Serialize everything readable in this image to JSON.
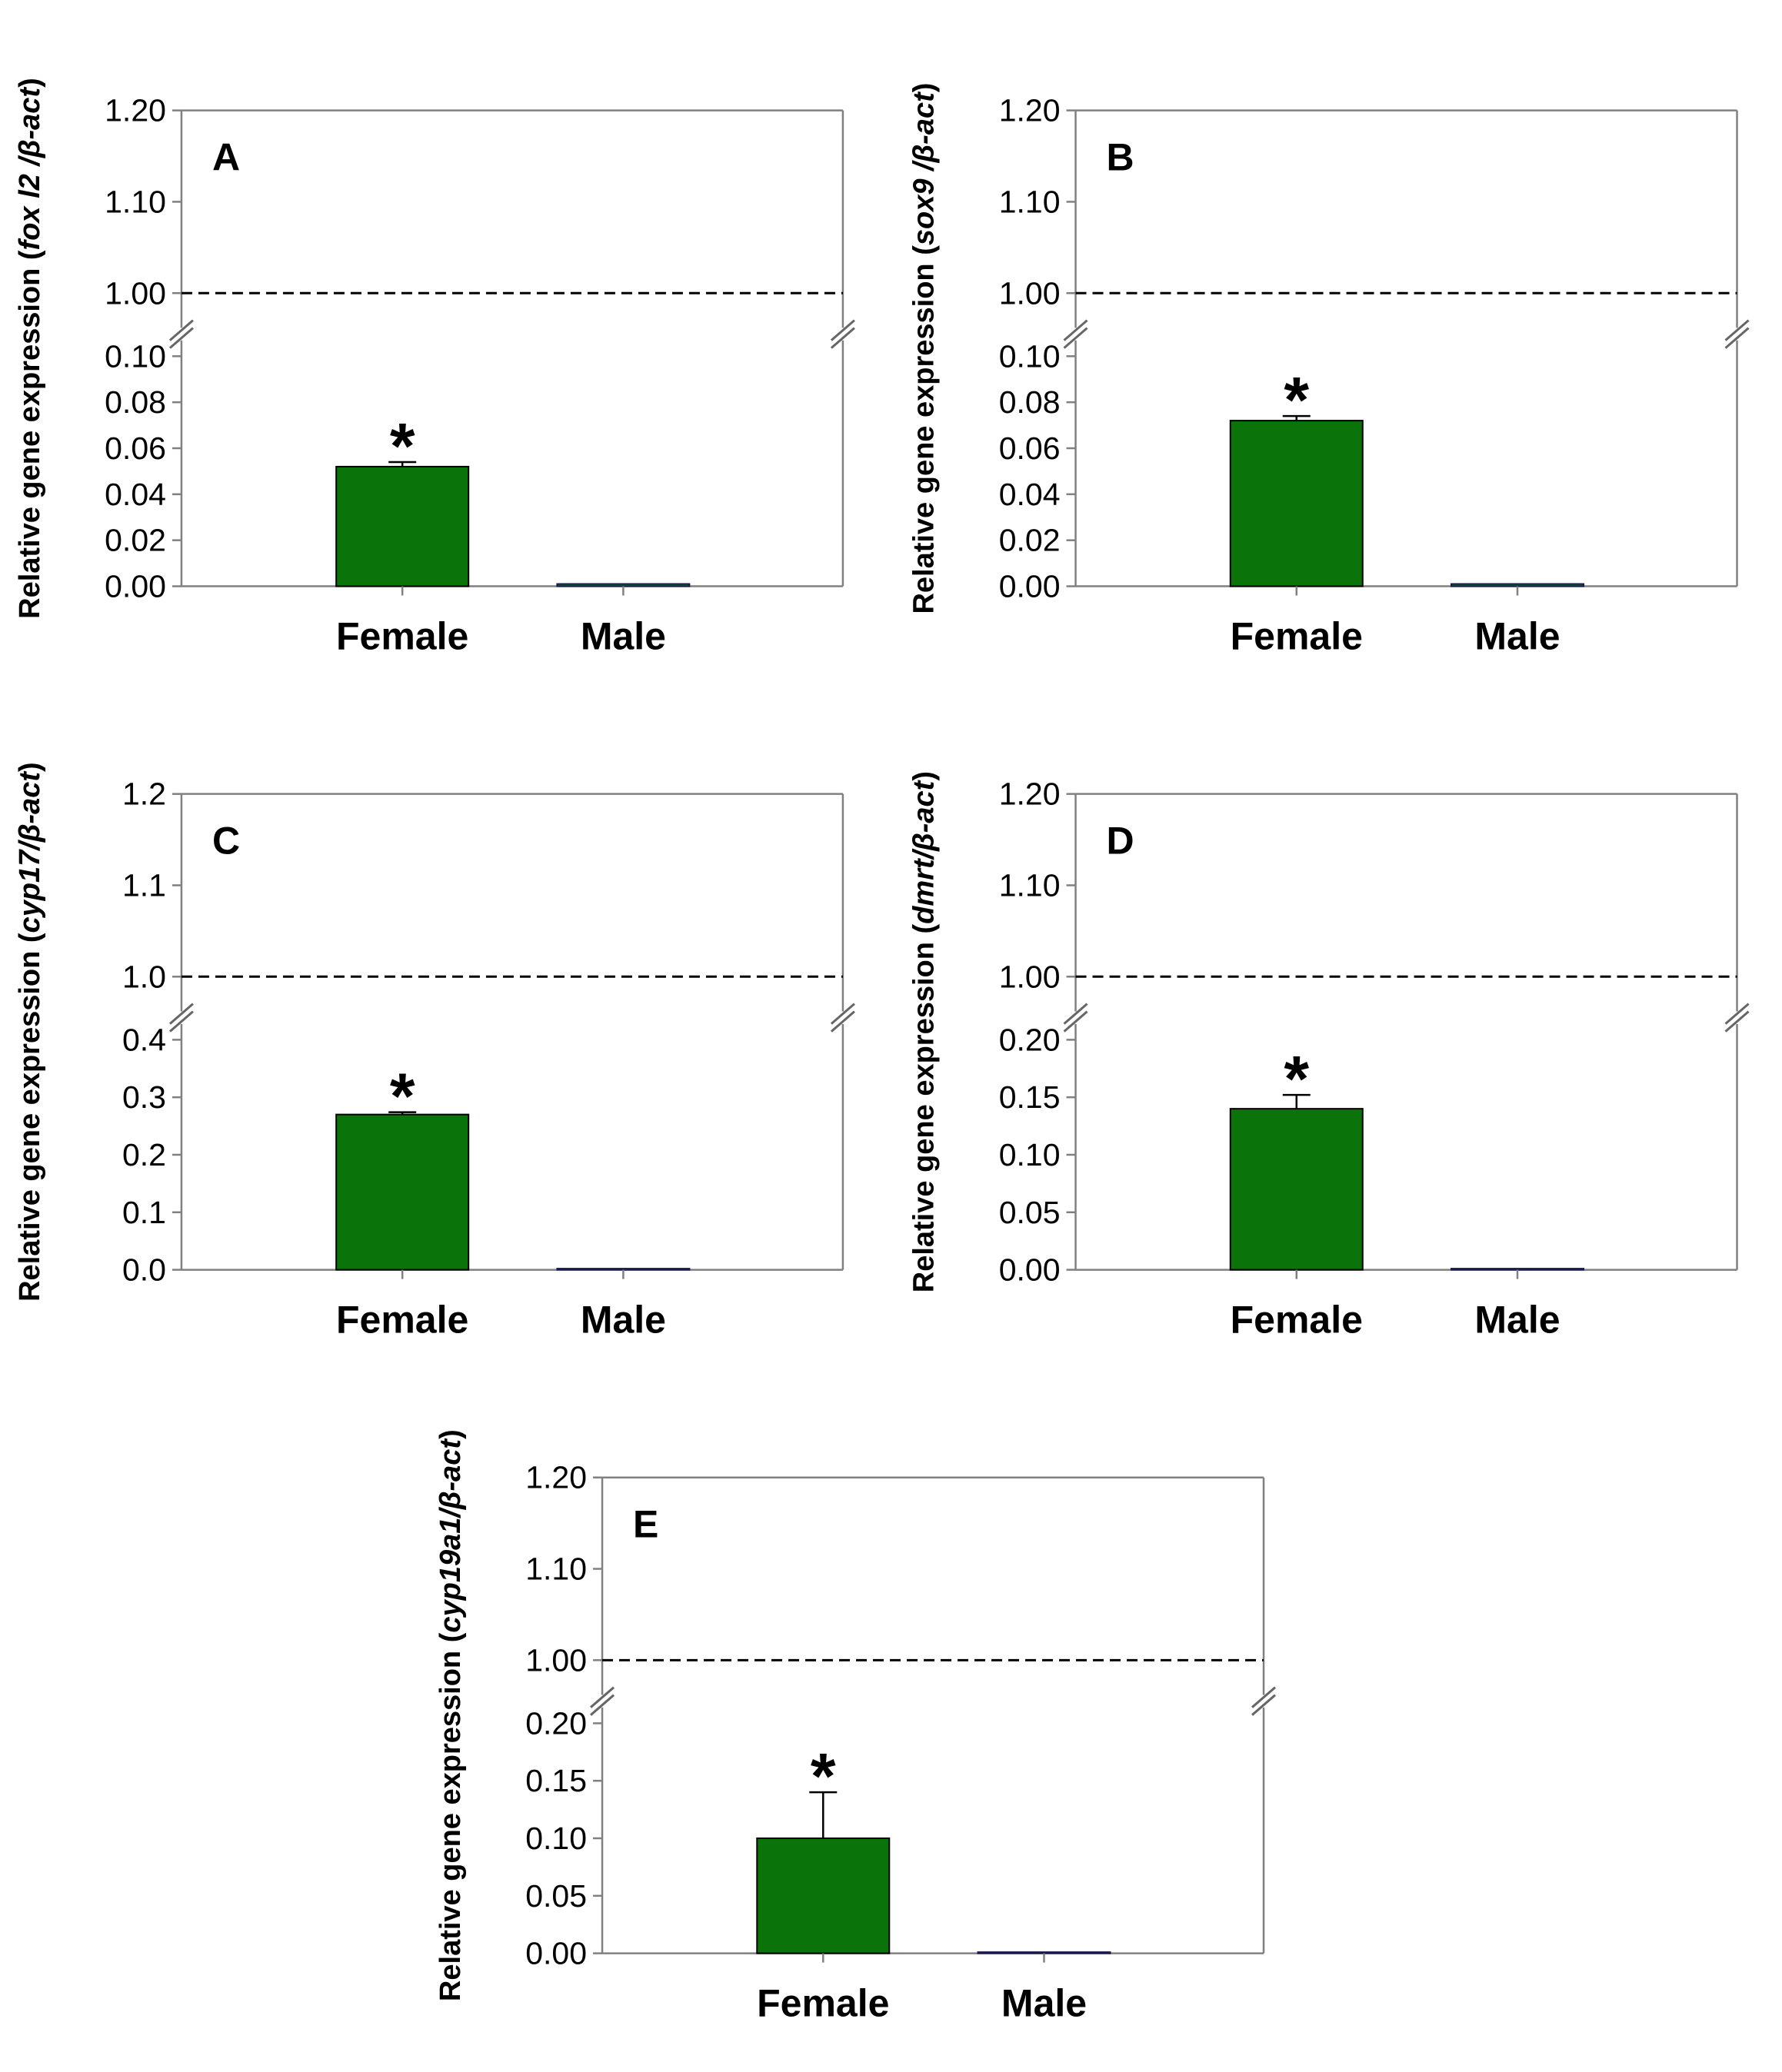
{
  "figure": {
    "bar_color": "#0a730a",
    "categories": [
      "Female",
      "Male"
    ]
  },
  "chart_data": [
    {
      "type": "bar",
      "panel": "A",
      "ylabel_prefix": "Relative gene expression (",
      "ylabel_gene": "fox l2 /β-act",
      "ylabel_suffix": ")",
      "categories": [
        "Female",
        "Male"
      ],
      "values": [
        0.052,
        0.001
      ],
      "errors": [
        0.002,
        0
      ],
      "significant": [
        true,
        false
      ],
      "significance_marker": "*",
      "reference_line": 1.0,
      "axis_break": true,
      "lower_ticks": [
        "0.00",
        "0.02",
        "0.04",
        "0.06",
        "0.08",
        "0.10"
      ],
      "lower_range": [
        0,
        0.1
      ],
      "upper_ticks": [
        "1.00",
        "1.10",
        "1.20"
      ],
      "upper_range": [
        1.0,
        1.2
      ]
    },
    {
      "type": "bar",
      "panel": "B",
      "ylabel_prefix": "Relative gene expression (",
      "ylabel_gene": "sox9 /β-act",
      "ylabel_suffix": ")",
      "categories": [
        "Female",
        "Male"
      ],
      "values": [
        0.072,
        0.001
      ],
      "errors": [
        0.002,
        0
      ],
      "significant": [
        true,
        false
      ],
      "significance_marker": "*",
      "reference_line": 1.0,
      "axis_break": true,
      "lower_ticks": [
        "0.00",
        "0.02",
        "0.04",
        "0.06",
        "0.08",
        "0.10"
      ],
      "lower_range": [
        0,
        0.1
      ],
      "upper_ticks": [
        "1.00",
        "1.10",
        "1.20"
      ],
      "upper_range": [
        1.0,
        1.2
      ]
    },
    {
      "type": "bar",
      "panel": "C",
      "ylabel_prefix": "Relative gene expression (",
      "ylabel_gene": "cyp17/β-act",
      "ylabel_suffix": ")",
      "categories": [
        "Female",
        "Male"
      ],
      "values": [
        0.27,
        0.002
      ],
      "errors": [
        0.004,
        0
      ],
      "significant": [
        true,
        false
      ],
      "significance_marker": "*",
      "reference_line": 1.0,
      "axis_break": true,
      "lower_ticks": [
        "0.0",
        "0.1",
        "0.2",
        "0.3",
        "0.4"
      ],
      "lower_range": [
        0,
        0.4
      ],
      "upper_ticks": [
        "1.0",
        "1.1",
        "1.2"
      ],
      "upper_range": [
        1.0,
        1.2
      ]
    },
    {
      "type": "bar",
      "panel": "D",
      "ylabel_prefix": "Relative gene expression (",
      "ylabel_gene": "dmrt/β-act",
      "ylabel_suffix": ")",
      "categories": [
        "Female",
        "Male"
      ],
      "values": [
        0.14,
        0.001
      ],
      "errors": [
        0.012,
        0
      ],
      "significant": [
        true,
        false
      ],
      "significance_marker": "*",
      "reference_line": 1.0,
      "axis_break": true,
      "lower_ticks": [
        "0.00",
        "0.05",
        "0.10",
        "0.15",
        "0.20"
      ],
      "lower_range": [
        0,
        0.2
      ],
      "upper_ticks": [
        "1.00",
        "1.10",
        "1.20"
      ],
      "upper_range": [
        1.0,
        1.2
      ]
    },
    {
      "type": "bar",
      "panel": "E",
      "ylabel_prefix": "Relative gene expression (",
      "ylabel_gene": "cyp19a1/β-act",
      "ylabel_suffix": ")",
      "categories": [
        "Female",
        "Male"
      ],
      "values": [
        0.1,
        0.001
      ],
      "errors": [
        0.04,
        0
      ],
      "significant": [
        true,
        false
      ],
      "significance_marker": "*",
      "reference_line": 1.0,
      "axis_break": true,
      "lower_ticks": [
        "0.00",
        "0.05",
        "0.10",
        "0.15",
        "0.20"
      ],
      "lower_range": [
        0,
        0.2
      ],
      "upper_ticks": [
        "1.00",
        "1.10",
        "1.20"
      ],
      "upper_range": [
        1.0,
        1.2
      ]
    }
  ]
}
